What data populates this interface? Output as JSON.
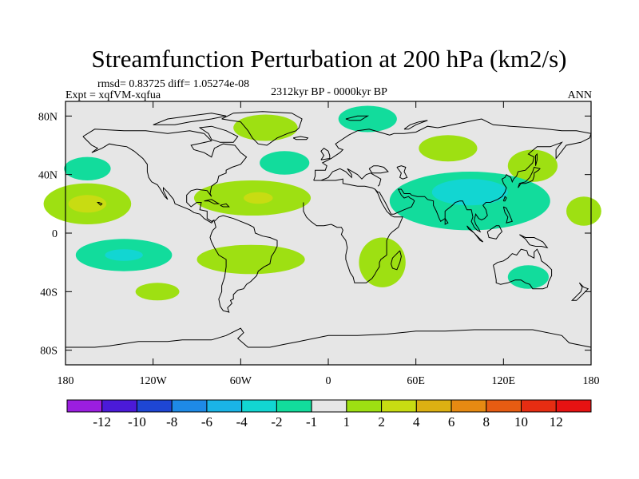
{
  "chart_data": {
    "type": "heatmap",
    "title": "Streamfunction Perturbation at 200 hPa (km2/s)",
    "stats_text": "rmsd= 0.83725 diff= 1.05274e-08",
    "experiment_text": "Expt = xqfVM-xqfua",
    "period_text": "2312kyr BP - 0000kyr BP",
    "season_text": "ANN",
    "map_projection": "cylindrical equidistant",
    "lon_range": [
      -180,
      180
    ],
    "lat_range": [
      -90,
      90
    ],
    "x_ticks": [
      {
        "lon": -180,
        "label": "180"
      },
      {
        "lon": -120,
        "label": "120W"
      },
      {
        "lon": -60,
        "label": "60W"
      },
      {
        "lon": 0,
        "label": "0"
      },
      {
        "lon": 60,
        "label": "60E"
      },
      {
        "lon": 120,
        "label": "120E"
      },
      {
        "lon": 180,
        "label": "180"
      }
    ],
    "y_ticks": [
      {
        "lat": 80,
        "label": "80N"
      },
      {
        "lat": 40,
        "label": "40N"
      },
      {
        "lat": 0,
        "label": "0"
      },
      {
        "lat": -40,
        "label": "40S"
      },
      {
        "lat": -80,
        "label": "80S"
      }
    ],
    "background_color": "#e6e6e6",
    "colorbar": {
      "colors": [
        "#9b1ee0",
        "#4b1ad8",
        "#1e46d4",
        "#1e8ae6",
        "#1ab4e6",
        "#12d6d2",
        "#12dc9c",
        "#e6e6e6",
        "#9ee012",
        "#c8dc12",
        "#dcb012",
        "#e68a12",
        "#e65c12",
        "#e62d12",
        "#e61212"
      ],
      "labels": [
        "-12",
        "-10",
        "-8",
        "-6",
        "-4",
        "-2",
        "-1",
        "1",
        "2",
        "4",
        "6",
        "8",
        "10",
        "12"
      ]
    },
    "regions": [
      {
        "lon": 27,
        "lat": 78,
        "rlon": 20,
        "rlat": 9,
        "value": -1.5
      },
      {
        "lon": -43,
        "lat": 72,
        "rlon": 22,
        "rlat": 9,
        "value": 1.5
      },
      {
        "lon": 82,
        "lat": 58,
        "rlon": 20,
        "rlat": 9,
        "value": 1.5
      },
      {
        "lon": 140,
        "lat": 46,
        "rlon": 17,
        "rlat": 11,
        "value": 1.5
      },
      {
        "lon": -30,
        "lat": 48,
        "rlon": 17,
        "rlat": 8,
        "value": -1.5
      },
      {
        "lon": -165,
        "lat": 44,
        "rlon": 16,
        "rlat": 8,
        "value": -1.5
      },
      {
        "lon": -165,
        "lat": 20,
        "rlon": 30,
        "rlat": 14,
        "value": 1.5
      },
      {
        "lon": -165,
        "lat": 20,
        "rlon": 13,
        "rlat": 6,
        "value": 3
      },
      {
        "lon": -52,
        "lat": 24,
        "rlon": 40,
        "rlat": 12,
        "value": 1.5
      },
      {
        "lon": -48,
        "lat": 24,
        "rlon": 10,
        "rlat": 4,
        "value": 3
      },
      {
        "lon": 97,
        "lat": 22,
        "rlon": 55,
        "rlat": 20,
        "value": -1.5
      },
      {
        "lon": 97,
        "lat": 28,
        "rlon": 26,
        "rlat": 9,
        "value": -2.5
      },
      {
        "lon": 175,
        "lat": 15,
        "rlon": 12,
        "rlat": 10,
        "value": 1.5
      },
      {
        "lon": -140,
        "lat": -15,
        "rlon": 33,
        "rlat": 11,
        "value": -1.5
      },
      {
        "lon": -140,
        "lat": -15,
        "rlon": 13,
        "rlat": 4,
        "value": -2.5
      },
      {
        "lon": -53,
        "lat": -18,
        "rlon": 37,
        "rlat": 10,
        "value": 1.5
      },
      {
        "lon": -117,
        "lat": -40,
        "rlon": 15,
        "rlat": 6,
        "value": 1.5
      },
      {
        "lon": 37,
        "lat": -20,
        "rlon": 16,
        "rlat": 17,
        "value": 1.5
      },
      {
        "lon": 137,
        "lat": -30,
        "rlon": 14,
        "rlat": 8,
        "value": -1.5
      }
    ]
  }
}
